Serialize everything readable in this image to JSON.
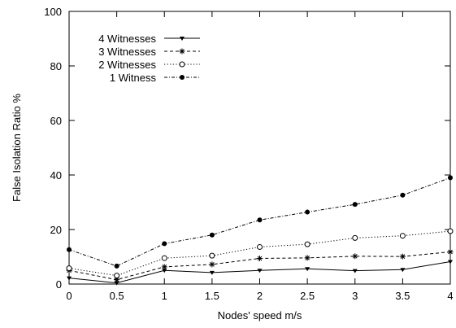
{
  "chart_data": {
    "type": "line",
    "xlabel": "Nodes' speed m/s",
    "ylabel": "False Isolation Ratio %",
    "xlim": [
      0,
      4
    ],
    "ylim": [
      0,
      100
    ],
    "xticks": [
      0,
      0.5,
      1,
      1.5,
      2,
      2.5,
      3,
      3.5,
      4
    ],
    "yticks": [
      0,
      20,
      40,
      60,
      80,
      100
    ],
    "grid": false,
    "legend_position": "top-left",
    "x": [
      0,
      0.5,
      1,
      1.5,
      2,
      2.5,
      3,
      3.5,
      4
    ],
    "series": [
      {
        "name": "4 Witnesses",
        "line_style": "solid",
        "marker": "triangle-down",
        "values": [
          2.2,
          0.4,
          5.0,
          4.2,
          5.0,
          5.6,
          4.9,
          5.3,
          8.2
        ]
      },
      {
        "name": "3 Witnesses",
        "line_style": "dashed",
        "marker": "asterisk",
        "values": [
          5.0,
          1.6,
          6.3,
          7.2,
          9.4,
          9.6,
          10.2,
          10.1,
          11.8
        ]
      },
      {
        "name": "2 Witnesses",
        "line_style": "dotted",
        "marker": "open-circle",
        "values": [
          5.8,
          3.1,
          9.5,
          10.4,
          13.6,
          14.6,
          16.9,
          17.7,
          19.4
        ]
      },
      {
        "name": "1 Witness",
        "line_style": "dash-dot",
        "marker": "filled-circle",
        "values": [
          12.6,
          6.6,
          14.8,
          18.0,
          23.5,
          26.4,
          29.2,
          32.6,
          39.0
        ]
      }
    ]
  }
}
